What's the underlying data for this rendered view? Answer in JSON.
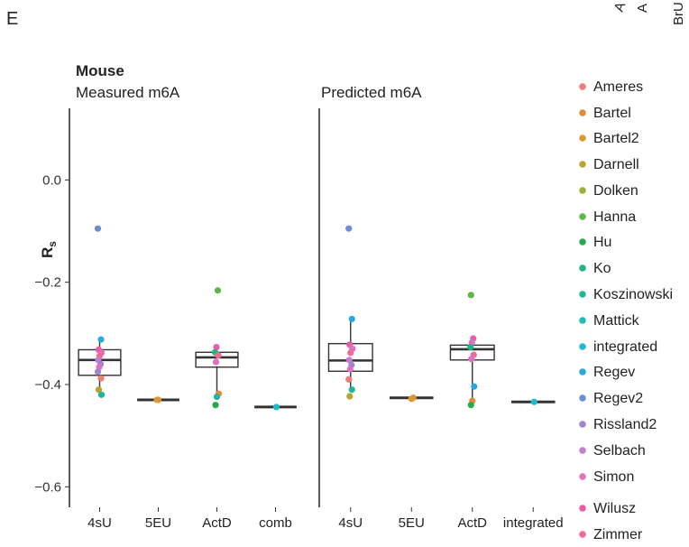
{
  "panel_letter": "E",
  "corner_fragments": [
    "A",
    "A",
    "BrU"
  ],
  "chart_data": {
    "type": "box",
    "group_title": "Mouse",
    "ylabel": "R",
    "ylabel_subscript": "s",
    "ylim": [
      -0.64,
      0.14
    ],
    "yticks": [
      0.0,
      -0.2,
      -0.4,
      -0.6
    ],
    "ytick_labels": [
      "0.0",
      "-0.2",
      "-0.4",
      "-0.6"
    ],
    "legend": [
      {
        "name": "Ameres",
        "color": "#F07C76"
      },
      {
        "name": "Bartel",
        "color": "#E58A3A"
      },
      {
        "name": "Bartel2",
        "color": "#D79B33"
      },
      {
        "name": "Darnell",
        "color": "#B8A530"
      },
      {
        "name": "Dolken",
        "color": "#97B33A"
      },
      {
        "name": "Hanna",
        "color": "#5DB848"
      },
      {
        "name": "Hu",
        "color": "#2AA84F"
      },
      {
        "name": "Ko",
        "color": "#1FB57E"
      },
      {
        "name": "Koszinowski",
        "color": "#22B59E"
      },
      {
        "name": "Mattick",
        "color": "#1EBDB8"
      },
      {
        "name": "integrated",
        "color": "#1DBBD0"
      },
      {
        "name": "Regev",
        "color": "#2AA9E0"
      },
      {
        "name": "Regev2",
        "color": "#6C8FD3"
      },
      {
        "name": "Rissland2",
        "color": "#9E86CF"
      },
      {
        "name": "Selbach",
        "color": "#C77BD3"
      },
      {
        "name": "Simon",
        "color": "#E070C2"
      },
      {
        "name": "Wilusz",
        "color": "#E95DA8"
      },
      {
        "name": "Zimmer",
        "color": "#F06A93"
      }
    ],
    "facets": [
      {
        "title": "Measured m6A",
        "categories": [
          "4sU",
          "5EU",
          "ActD",
          "comb"
        ],
        "boxes": [
          {
            "category": "4sU",
            "min": -0.41,
            "q1": -0.382,
            "median": -0.352,
            "q3": -0.332,
            "max": -0.312
          },
          {
            "category": "5EU",
            "min": -0.43,
            "q1": -0.43,
            "median": -0.43,
            "q3": -0.43,
            "max": -0.43
          },
          {
            "category": "ActD",
            "min": -0.42,
            "q1": -0.366,
            "median": -0.347,
            "q3": -0.337,
            "max": -0.327
          },
          {
            "category": "comb",
            "min": -0.444,
            "q1": -0.444,
            "median": -0.444,
            "q3": -0.444,
            "max": -0.444
          }
        ],
        "points": [
          {
            "category": "4sU",
            "lab": "Regev2",
            "value": -0.095
          },
          {
            "category": "4sU",
            "lab": "Regev",
            "value": -0.312
          },
          {
            "category": "4sU",
            "lab": "Wilusz",
            "value": -0.332
          },
          {
            "category": "4sU",
            "lab": "Simon",
            "value": -0.338
          },
          {
            "category": "4sU",
            "lab": "Zimmer",
            "value": -0.344
          },
          {
            "category": "4sU",
            "lab": "Selbach",
            "value": -0.352
          },
          {
            "category": "4sU",
            "lab": "Rissland2",
            "value": -0.36
          },
          {
            "category": "4sU",
            "lab": "Simon",
            "value": -0.366
          },
          {
            "category": "4sU",
            "lab": "Rissland2",
            "value": -0.375
          },
          {
            "category": "4sU",
            "lab": "Ameres",
            "value": -0.388
          },
          {
            "category": "4sU",
            "lab": "Darnell",
            "value": -0.41
          },
          {
            "category": "4sU",
            "lab": "Koszinowski",
            "value": -0.42
          },
          {
            "category": "5EU",
            "lab": "Bartel",
            "value": -0.43
          },
          {
            "category": "5EU",
            "lab": "Bartel2",
            "value": -0.43
          },
          {
            "category": "ActD",
            "lab": "Hanna",
            "value": -0.216
          },
          {
            "category": "ActD",
            "lab": "Wilusz",
            "value": -0.327
          },
          {
            "category": "ActD",
            "lab": "Ko",
            "value": -0.337
          },
          {
            "category": "ActD",
            "lab": "Zimmer",
            "value": -0.343
          },
          {
            "category": "ActD",
            "lab": "Simon",
            "value": -0.356
          },
          {
            "category": "ActD",
            "lab": "Bartel",
            "value": -0.418
          },
          {
            "category": "ActD",
            "lab": "Koszinowski",
            "value": -0.424
          },
          {
            "category": "ActD",
            "lab": "Hu",
            "value": -0.44
          },
          {
            "category": "comb",
            "lab": "integrated",
            "value": -0.444
          }
        ]
      },
      {
        "title": "Predicted m6A",
        "categories": [
          "4sU",
          "5EU",
          "ActD",
          "integrated"
        ],
        "boxes": [
          {
            "category": "4sU",
            "min": -0.41,
            "q1": -0.374,
            "median": -0.353,
            "q3": -0.32,
            "max": -0.272
          },
          {
            "category": "5EU",
            "min": -0.426,
            "q1": -0.426,
            "median": -0.426,
            "q3": -0.426,
            "max": -0.426
          },
          {
            "category": "ActD",
            "min": -0.44,
            "q1": -0.352,
            "median": -0.331,
            "q3": -0.323,
            "max": -0.308
          },
          {
            "category": "integrated",
            "min": -0.434,
            "q1": -0.434,
            "median": -0.434,
            "q3": -0.434,
            "max": -0.434
          }
        ],
        "points": [
          {
            "category": "4sU",
            "lab": "Regev2",
            "value": -0.095
          },
          {
            "category": "4sU",
            "lab": "Regev",
            "value": -0.272
          },
          {
            "category": "4sU",
            "lab": "Wilusz",
            "value": -0.322
          },
          {
            "category": "4sU",
            "lab": "Simon",
            "value": -0.33
          },
          {
            "category": "4sU",
            "lab": "Zimmer",
            "value": -0.338
          },
          {
            "category": "4sU",
            "lab": "Selbach",
            "value": -0.352
          },
          {
            "category": "4sU",
            "lab": "Rissland2",
            "value": -0.362
          },
          {
            "category": "4sU",
            "lab": "Simon",
            "value": -0.37
          },
          {
            "category": "4sU",
            "lab": "Ameres",
            "value": -0.39
          },
          {
            "category": "4sU",
            "lab": "Koszinowski",
            "value": -0.41
          },
          {
            "category": "4sU",
            "lab": "Darnell",
            "value": -0.423
          },
          {
            "category": "5EU",
            "lab": "Bartel",
            "value": -0.426
          },
          {
            "category": "5EU",
            "lab": "Bartel2",
            "value": -0.428
          },
          {
            "category": "ActD",
            "lab": "Hanna",
            "value": -0.225
          },
          {
            "category": "ActD",
            "lab": "Wilusz",
            "value": -0.31
          },
          {
            "category": "ActD",
            "lab": "Simon",
            "value": -0.318
          },
          {
            "category": "ActD",
            "lab": "Ko",
            "value": -0.327
          },
          {
            "category": "ActD",
            "lab": "Zimmer",
            "value": -0.342
          },
          {
            "category": "ActD",
            "lab": "Simon",
            "value": -0.35
          },
          {
            "category": "ActD",
            "lab": "Regev",
            "value": -0.404
          },
          {
            "category": "ActD",
            "lab": "Bartel",
            "value": -0.432
          },
          {
            "category": "ActD",
            "lab": "Hu",
            "value": -0.44
          },
          {
            "category": "integrated",
            "lab": "integrated",
            "value": -0.434
          }
        ]
      }
    ]
  }
}
